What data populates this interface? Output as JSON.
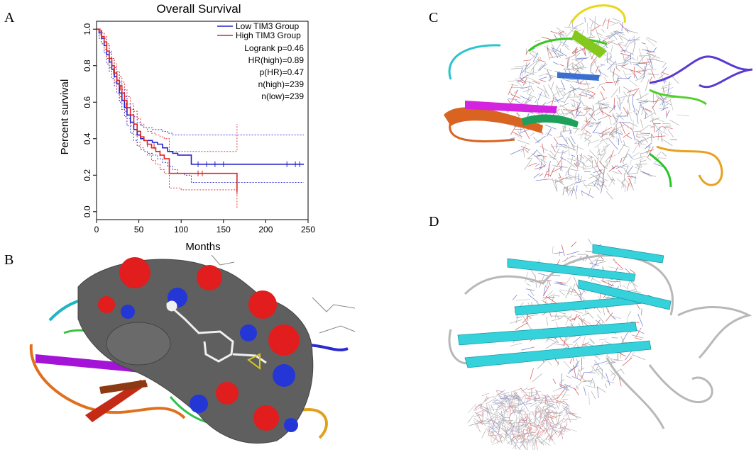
{
  "panels": {
    "a": {
      "letter": "A"
    },
    "b": {
      "letter": "B"
    },
    "c": {
      "letter": "C"
    },
    "d": {
      "letter": "D"
    }
  },
  "colors": {
    "low_group": "#2222cc",
    "high_group": "#dd2222",
    "surface_grey": "#5f5f5f",
    "surface_red": "#e11d1d",
    "surface_blue": "#2437d6",
    "cyan_sheet": "#35d2dc",
    "grey_coil": "#b8b8b8"
  },
  "chart_data": {
    "type": "line",
    "title": "Overall Survival",
    "xlabel": "Months",
    "ylabel": "Percent survival",
    "xlim": [
      0,
      250
    ],
    "ylim": [
      0,
      1
    ],
    "xticks": [
      "0",
      "50",
      "100",
      "150",
      "200",
      "250"
    ],
    "yticks": [
      "0.0",
      "0.2",
      "0.4",
      "0.6",
      "0.8",
      "1.0"
    ],
    "legend_position": "top-right",
    "legend": [
      "Low TIM3 Group",
      "High TIM3 Group"
    ],
    "stats": [
      "Logrank p=0.46",
      "HR(high)=0.89",
      "p(HR)=0.47",
      "n(high)=239",
      "n(low)=239"
    ],
    "series": [
      {
        "name": "Low TIM3 Group",
        "color": "#2222cc",
        "x": [
          0,
          3,
          6,
          9,
          12,
          15,
          18,
          21,
          24,
          27,
          30,
          33,
          36,
          40,
          44,
          48,
          52,
          56,
          60,
          66,
          72,
          78,
          84,
          90,
          96,
          104,
          112,
          245
        ],
        "y": [
          1.0,
          0.98,
          0.95,
          0.91,
          0.86,
          0.82,
          0.78,
          0.74,
          0.7,
          0.65,
          0.61,
          0.57,
          0.53,
          0.49,
          0.45,
          0.42,
          0.4,
          0.39,
          0.39,
          0.38,
          0.37,
          0.35,
          0.33,
          0.32,
          0.31,
          0.31,
          0.26,
          0.26
        ],
        "censor_x": [
          120,
          130,
          140,
          150,
          225,
          235,
          240
        ],
        "censor_y": [
          0.26,
          0.26,
          0.26,
          0.26,
          0.26,
          0.26,
          0.26
        ],
        "ci_upper": [
          1.0,
          1.0,
          0.98,
          0.95,
          0.91,
          0.87,
          0.83,
          0.79,
          0.75,
          0.71,
          0.67,
          0.63,
          0.59,
          0.56,
          0.52,
          0.49,
          0.47,
          0.46,
          0.46,
          0.45,
          0.45,
          0.44,
          0.43,
          0.42,
          0.42,
          0.42,
          0.42,
          0.42
        ],
        "ci_lower": [
          1.0,
          0.95,
          0.92,
          0.87,
          0.81,
          0.77,
          0.73,
          0.69,
          0.65,
          0.6,
          0.56,
          0.52,
          0.47,
          0.43,
          0.39,
          0.36,
          0.34,
          0.33,
          0.32,
          0.31,
          0.29,
          0.27,
          0.25,
          0.23,
          0.21,
          0.2,
          0.16,
          0.16
        ]
      },
      {
        "name": "High TIM3 Group",
        "color": "#dd2222",
        "x": [
          0,
          3,
          6,
          9,
          12,
          15,
          18,
          21,
          24,
          27,
          30,
          33,
          36,
          40,
          44,
          48,
          52,
          56,
          60,
          65,
          70,
          75,
          80,
          86,
          90,
          100,
          166
        ],
        "y": [
          1.0,
          0.99,
          0.96,
          0.93,
          0.88,
          0.84,
          0.8,
          0.76,
          0.72,
          0.69,
          0.65,
          0.61,
          0.57,
          0.53,
          0.48,
          0.44,
          0.41,
          0.39,
          0.37,
          0.35,
          0.33,
          0.31,
          0.29,
          0.21,
          0.21,
          0.21,
          0.11
        ],
        "censor_x": [
          20,
          28,
          35,
          60,
          68,
          75,
          120,
          125,
          166
        ],
        "censor_y": [
          0.77,
          0.68,
          0.58,
          0.37,
          0.36,
          0.32,
          0.21,
          0.21,
          0.11
        ],
        "ci_upper": [
          1.0,
          1.0,
          0.98,
          0.96,
          0.92,
          0.88,
          0.84,
          0.81,
          0.77,
          0.74,
          0.71,
          0.67,
          0.63,
          0.59,
          0.55,
          0.51,
          0.48,
          0.46,
          0.44,
          0.43,
          0.42,
          0.41,
          0.4,
          0.33,
          0.33,
          0.33,
          0.48
        ],
        "ci_lower": [
          1.0,
          0.97,
          0.93,
          0.89,
          0.84,
          0.79,
          0.75,
          0.71,
          0.67,
          0.63,
          0.59,
          0.55,
          0.51,
          0.47,
          0.42,
          0.38,
          0.35,
          0.33,
          0.31,
          0.28,
          0.26,
          0.23,
          0.21,
          0.13,
          0.13,
          0.12,
          0.02
        ]
      }
    ]
  }
}
